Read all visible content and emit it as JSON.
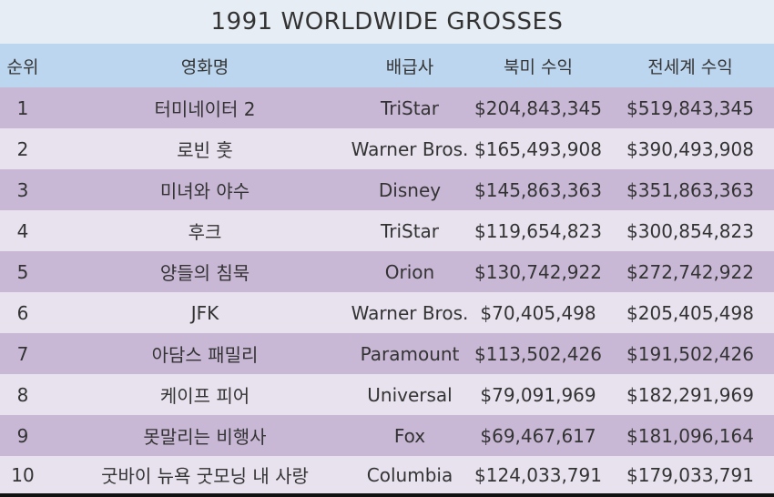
{
  "title": "1991 WORLDWIDE GROSSES",
  "headers": {
    "rank": "순위",
    "title": "영화명",
    "distributor": "배급사",
    "domestic": "북미 수익",
    "worldwide": "전세계 수익"
  },
  "rows": [
    {
      "rank": "1",
      "title": "터미네이터 2",
      "distributor": "TriStar",
      "domestic": "$204,843,345",
      "worldwide": "$519,843,345"
    },
    {
      "rank": "2",
      "title": "로빈 훗",
      "distributor": "Warner Bros.",
      "domestic": "$165,493,908",
      "worldwide": "$390,493,908"
    },
    {
      "rank": "3",
      "title": "미녀와 야수",
      "distributor": "Disney",
      "domestic": "$145,863,363",
      "worldwide": "$351,863,363"
    },
    {
      "rank": "4",
      "title": "후크",
      "distributor": "TriStar",
      "domestic": "$119,654,823",
      "worldwide": "$300,854,823"
    },
    {
      "rank": "5",
      "title": "양들의 침묵",
      "distributor": "Orion",
      "domestic": "$130,742,922",
      "worldwide": "$272,742,922"
    },
    {
      "rank": "6",
      "title": "JFK",
      "distributor": "Warner Bros.",
      "domestic": "$70,405,498",
      "worldwide": "$205,405,498"
    },
    {
      "rank": "7",
      "title": "아담스 패밀리",
      "distributor": "Paramount",
      "domestic": "$113,502,426",
      "worldwide": "$191,502,426"
    },
    {
      "rank": "8",
      "title": "케이프 피어",
      "distributor": "Universal",
      "domestic": "$79,091,969",
      "worldwide": "$182,291,969"
    },
    {
      "rank": "9",
      "title": "못말리는 비행사",
      "distributor": "Fox",
      "domestic": "$69,467,617",
      "worldwide": "$181,096,164"
    },
    {
      "rank": "10",
      "title": "굿바이 뉴욕 굿모닝 내 사랑",
      "distributor": "Columbia",
      "domestic": "$124,033,791",
      "worldwide": "$179,033,791"
    }
  ],
  "colors": {
    "title_bg": "#e7edf4",
    "header_bg": "#bcd6ef",
    "row_odd": "#c8b8d6",
    "row_even": "#e8e2ee",
    "text": "#333333"
  }
}
